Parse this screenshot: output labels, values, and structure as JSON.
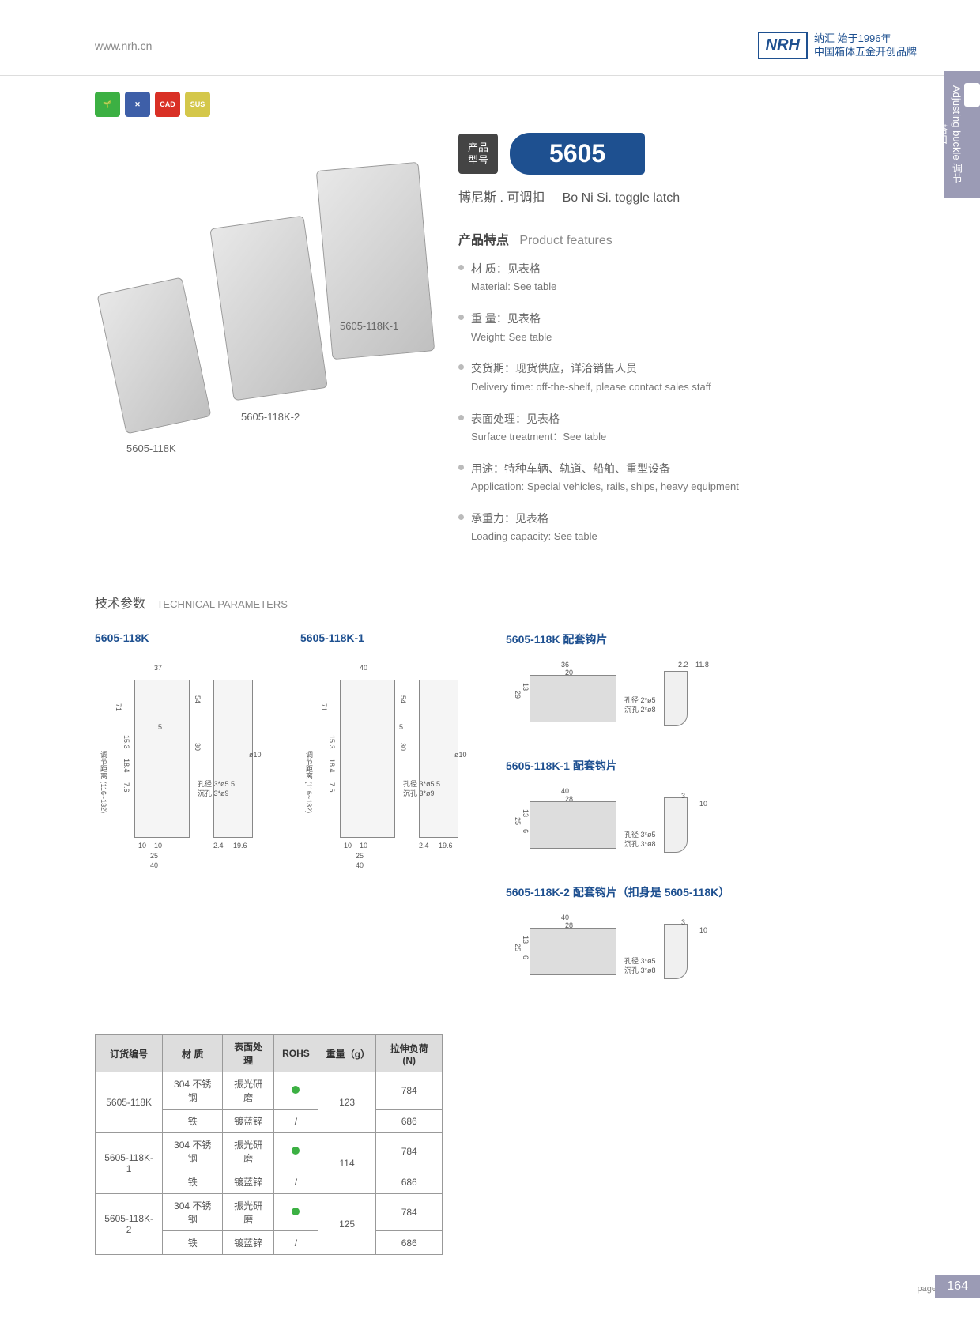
{
  "header": {
    "url": "www.nrh.cn",
    "logo": "NRH",
    "tagline1": "纳汇 始于1996年",
    "tagline2": "中国箱体五金开创品牌"
  },
  "sideTab": {
    "cn": "调节搭扣",
    "en": "Adjusting buckle"
  },
  "badges": [
    "🌱",
    "✕",
    "CAD",
    "SUS"
  ],
  "model": {
    "labelCn": "产品",
    "labelCn2": "型号",
    "number": "5605"
  },
  "subtitle": {
    "cn": "博尼斯 . 可调扣",
    "en": "Bo Ni Si. toggle latch"
  },
  "featuresTitle": {
    "cn": "产品特点",
    "en": "Product features"
  },
  "features": [
    {
      "cn": "材 质：见表格",
      "en": "Material: See table"
    },
    {
      "cn": "重 量：见表格",
      "en": "Weight: See table"
    },
    {
      "cn": "交货期：现货供应，详洽销售人员",
      "en": "Delivery time: off-the-shelf, please contact sales staff"
    },
    {
      "cn": "表面处理：见表格",
      "en": "Surface treatment：See table"
    },
    {
      "cn": "用途：特种车辆、轨道、船舶、重型设备",
      "en": "Application: Special vehicles, rails, ships, heavy equipment"
    },
    {
      "cn": "承重力：见表格",
      "en": "Loading capacity: See table"
    }
  ],
  "productLabels": [
    "5605-118K",
    "5605-118K-2",
    "5605-118K-1"
  ],
  "techTitle": {
    "cn": "技术参数",
    "en": "TECHNICAL PARAMETERS"
  },
  "diagrams": {
    "d1": {
      "title": "5605-118K",
      "dims": {
        "w": "37",
        "h": "54",
        "range": "调节距离 (116~132)",
        "d1": "7.6",
        "d2": "18.4",
        "d3": "15.3",
        "d4": "71",
        "d5": "30",
        "d6": "5",
        "hole": "孔径 3*ø5.5",
        "sink": "沉孔 3*ø9",
        "side": "ø10",
        "b1": "10",
        "b2": "10",
        "b3": "25",
        "b4": "40",
        "s1": "2.4",
        "s2": "19.6"
      }
    },
    "d2": {
      "title": "5605-118K-1",
      "dims": {
        "w": "40",
        "h": "54",
        "range": "调节距离 (116~132)",
        "d1": "7.6",
        "d2": "18.4",
        "d3": "15.3",
        "d4": "71",
        "d5": "30",
        "d6": "5",
        "hole": "孔径 3*ø5.5",
        "sink": "沉孔 3*ø9",
        "side": "ø10",
        "b1": "10",
        "b2": "10",
        "b3": "25",
        "b4": "40",
        "s1": "2.4",
        "s2": "19.6"
      }
    },
    "d3": {
      "title": "5605-118K 配套钩片",
      "dims": {
        "w": "36",
        "w2": "20",
        "h": "29",
        "h2": "13",
        "hole": "孔径 2*ø5",
        "sink": "沉孔 2*ø8",
        "s1": "2.2",
        "s2": "11.8"
      }
    },
    "d4": {
      "title": "5605-118K-1 配套钩片",
      "dims": {
        "w": "40",
        "w2": "28",
        "h": "25",
        "h2": "13",
        "h3": "6",
        "hole": "孔径 3*ø5",
        "sink": "沉孔 3*ø8",
        "s1": "3",
        "s2": "10"
      }
    },
    "d5": {
      "title": "5605-118K-2 配套钩片（扣身是 5605-118K）",
      "dims": {
        "w": "40",
        "w2": "28",
        "h": "25",
        "h2": "13",
        "h3": "6",
        "hole": "孔径 3*ø5",
        "sink": "沉孔 3*ø8",
        "s1": "3",
        "s2": "10"
      }
    }
  },
  "table": {
    "headers": [
      "订货编号",
      "材 质",
      "表面处理",
      "ROHS",
      "重量（g）",
      "拉伸负荷 (N)"
    ],
    "rows": [
      [
        "5605-118K",
        "304 不锈钢",
        "振光研磨",
        "●",
        "123",
        "784"
      ],
      [
        "",
        "铁",
        "镀蓝锌",
        "/",
        "",
        "686"
      ],
      [
        "5605-118K-1",
        "304 不锈钢",
        "振光研磨",
        "●",
        "114",
        "784"
      ],
      [
        "",
        "铁",
        "镀蓝锌",
        "/",
        "",
        "686"
      ],
      [
        "5605-118K-2",
        "304 不锈钢",
        "振光研磨",
        "●",
        "125",
        "784"
      ],
      [
        "",
        "铁",
        "镀蓝锌",
        "/",
        "",
        "686"
      ]
    ]
  },
  "page": {
    "label": "page",
    "num": "164"
  }
}
